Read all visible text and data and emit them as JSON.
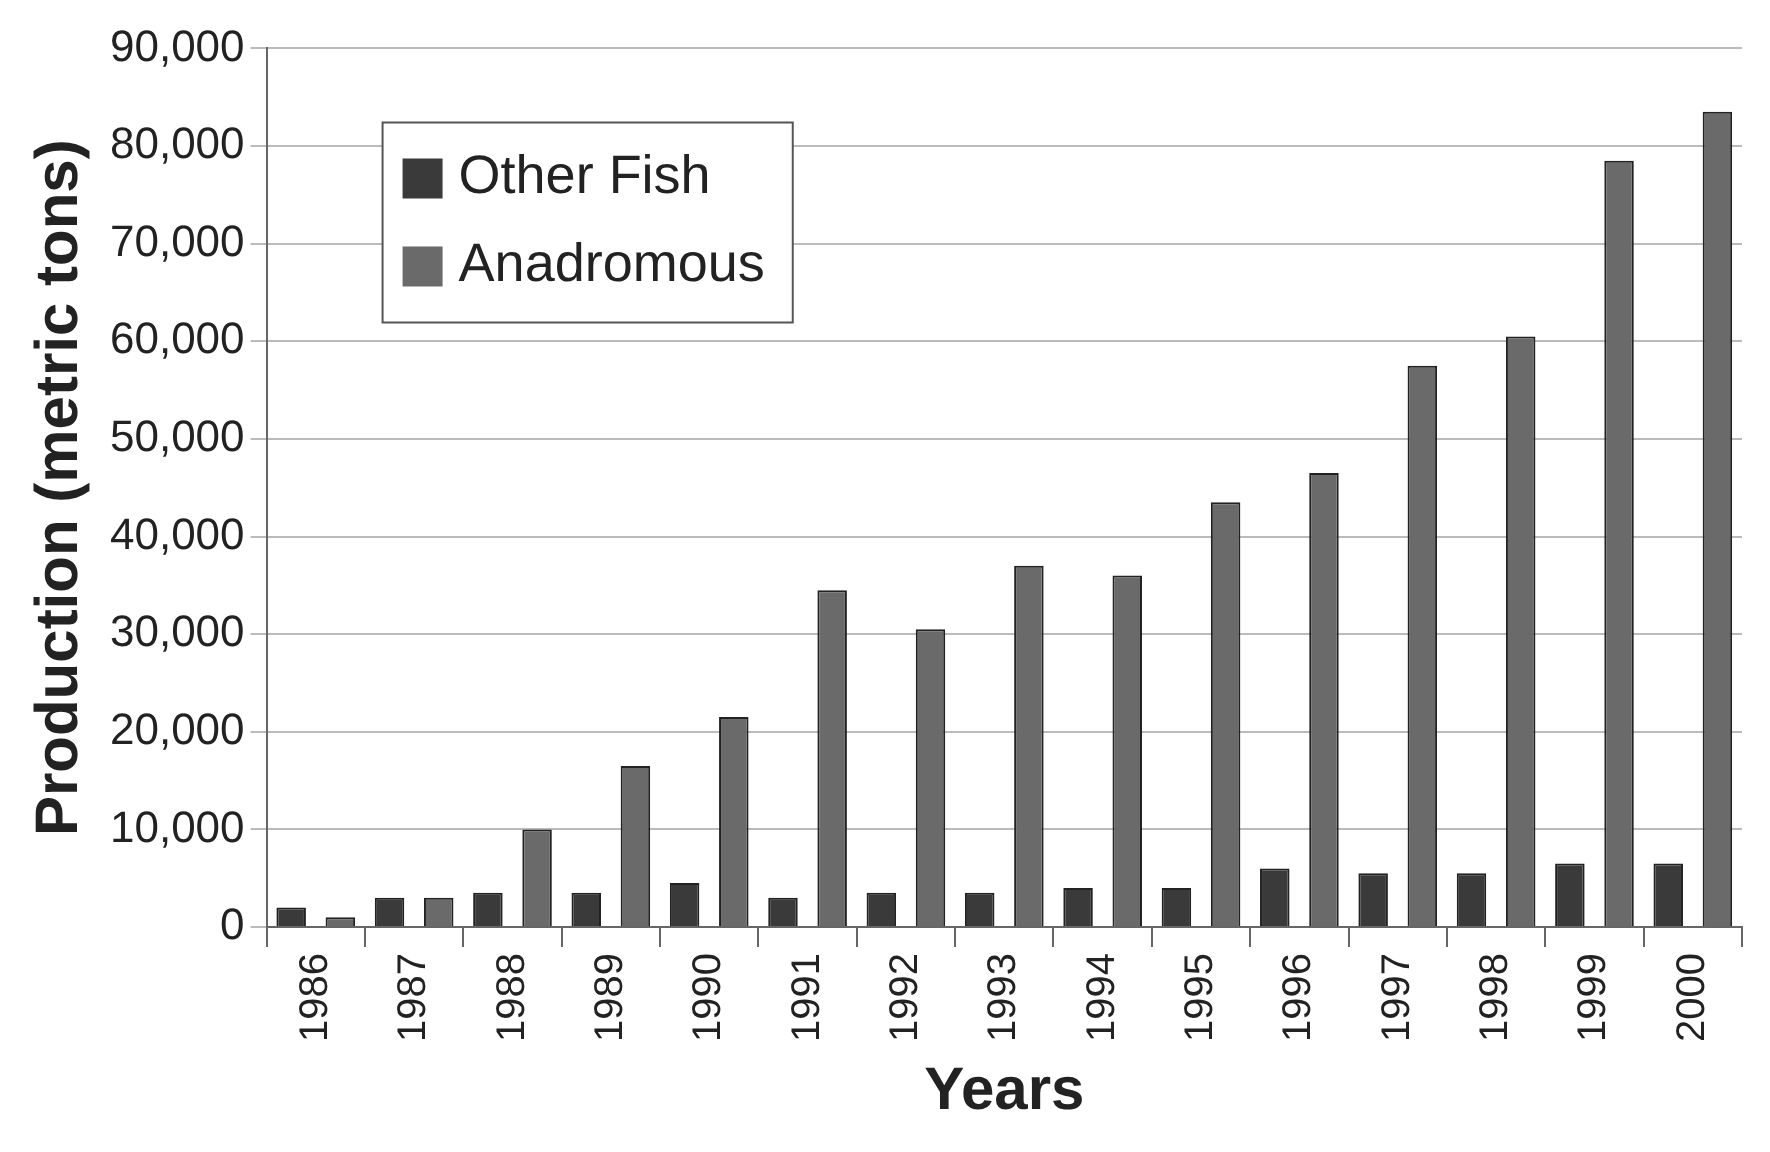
{
  "chart_data": {
    "type": "bar",
    "xlabel": "Years",
    "ylabel": "Production (metric tons)",
    "categories": [
      "1986",
      "1987",
      "1988",
      "1989",
      "1990",
      "1991",
      "1992",
      "1993",
      "1994",
      "1995",
      "1996",
      "1997",
      "1998",
      "1999",
      "2000"
    ],
    "series": [
      {
        "name": "Other Fish",
        "color": "#3a3a3a",
        "values": [
          2000,
          3000,
          3500,
          3500,
          4500,
          3000,
          3500,
          3500,
          4000,
          4000,
          6000,
          5500,
          5500,
          6500,
          6500
        ]
      },
      {
        "name": "Anadromous",
        "color": "#6a6a6a",
        "values": [
          1000,
          3000,
          10000,
          16500,
          21500,
          34500,
          30500,
          37000,
          36000,
          43500,
          46500,
          57500,
          60500,
          78500,
          83500
        ]
      }
    ],
    "ylim": [
      0,
      90000
    ],
    "yticks": [
      {
        "value": 0,
        "label": "0"
      },
      {
        "value": 10000,
        "label": "10,000"
      },
      {
        "value": 20000,
        "label": "20,000"
      },
      {
        "value": 30000,
        "label": "30,000"
      },
      {
        "value": 40000,
        "label": "40,000"
      },
      {
        "value": 50000,
        "label": "50,000"
      },
      {
        "value": 60000,
        "label": "60,000"
      },
      {
        "value": 70000,
        "label": "70,000"
      },
      {
        "value": 80000,
        "label": "80,000"
      },
      {
        "value": 90000,
        "label": "90,000"
      }
    ],
    "grid": "y",
    "legend": "top left"
  }
}
